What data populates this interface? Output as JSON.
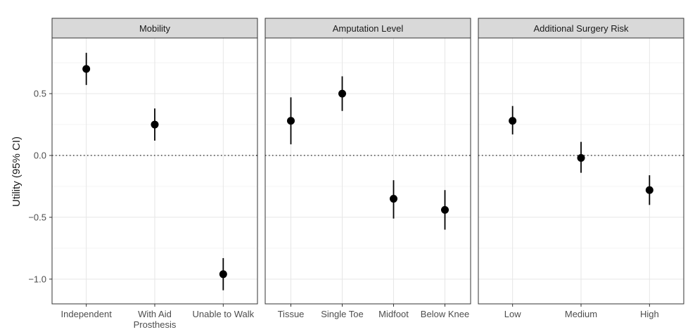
{
  "chart_data": {
    "type": "scatter",
    "ylabel": "Utility (95% CI)",
    "ylim": [
      -1.2,
      0.95
    ],
    "yticks": [
      -1.0,
      -0.5,
      0.0,
      0.5
    ],
    "ytick_labels": [
      "−1.0",
      "−0.5",
      "0.0",
      "0.5"
    ],
    "reference_line": 0.0,
    "grid": true,
    "panels": [
      {
        "title": "Mobility",
        "categories": [
          "Independent",
          "With Aid\nProsthesis",
          "Unable to Walk"
        ],
        "estimates": [
          0.7,
          0.25,
          -0.96
        ],
        "ci_lower": [
          0.57,
          0.12,
          -1.09
        ],
        "ci_upper": [
          0.83,
          0.38,
          -0.83
        ]
      },
      {
        "title": "Amputation Level",
        "categories": [
          "Tissue",
          "Single Toe",
          "Midfoot",
          "Below Knee"
        ],
        "estimates": [
          0.28,
          0.5,
          -0.35,
          -0.44
        ],
        "ci_lower": [
          0.09,
          0.36,
          -0.51,
          -0.6
        ],
        "ci_upper": [
          0.47,
          0.64,
          -0.2,
          -0.28
        ]
      },
      {
        "title": "Additional Surgery Risk",
        "categories": [
          "Low",
          "Medium",
          "High"
        ],
        "estimates": [
          0.28,
          -0.02,
          -0.28
        ],
        "ci_lower": [
          0.17,
          -0.14,
          -0.4
        ],
        "ci_upper": [
          0.4,
          0.11,
          -0.16
        ]
      }
    ]
  }
}
